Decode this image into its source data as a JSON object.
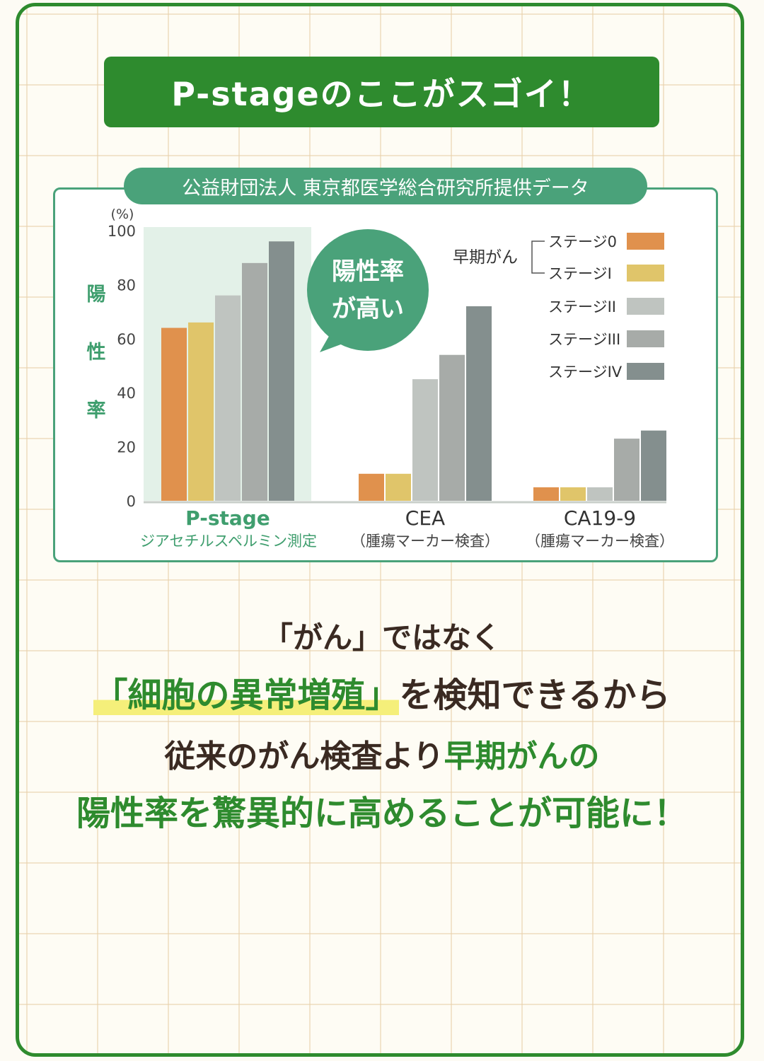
{
  "banner": {
    "title": "P-stageのここがスゴイ！"
  },
  "source_label": "公益財団法人 東京都医学総合研究所提供データ",
  "callout": {
    "line1": "陽性率",
    "line2": "が高い"
  },
  "chart_data": {
    "type": "bar",
    "unit": "(%)",
    "ylabel": "陽性率",
    "ylim": [
      0,
      100
    ],
    "yticks": [
      0,
      20,
      40,
      60,
      80,
      100
    ],
    "legend_group_label": "早期がん",
    "categories": [
      {
        "name": "P-stage",
        "sub": "ジアセチルスペルミン測定",
        "highlight": true
      },
      {
        "name": "CEA",
        "sub": "（腫瘍マーカー検査）",
        "highlight": false
      },
      {
        "name": "CA19-9",
        "sub": "（腫瘍マーカー検査）",
        "highlight": false
      }
    ],
    "series": [
      {
        "name": "ステージ0",
        "color": "#e0914d",
        "values": [
          64,
          10,
          5
        ]
      },
      {
        "name": "ステージI",
        "color": "#e0c56a",
        "values": [
          66,
          10,
          5
        ]
      },
      {
        "name": "ステージII",
        "color": "#bfc4c0",
        "values": [
          76,
          45,
          5
        ]
      },
      {
        "name": "ステージIII",
        "color": "#a7aba8",
        "values": [
          88,
          54,
          23
        ]
      },
      {
        "name": "ステージIV",
        "color": "#848f8e",
        "values": [
          96,
          72,
          26
        ]
      }
    ]
  },
  "message": {
    "line1": "「がん」ではなく",
    "line2_highlight": "「細胞の異常増殖」",
    "line2_rest": "を検知できるから",
    "line3_a": "従来のがん検査より",
    "line3_b": "早期がんの",
    "line4": "陽性率を驚異的に高めることが可能に！"
  }
}
